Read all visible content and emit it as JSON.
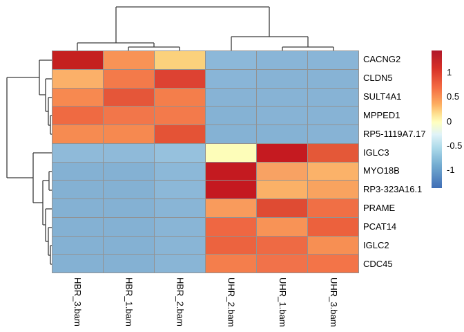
{
  "chart_data": {
    "type": "heatmap",
    "title": "",
    "columns": [
      "HBR_3.bam",
      "HBR_1.bam",
      "HBR_2.bam",
      "UHR_2.bam",
      "UHR_1.bam",
      "UHR_3.bam"
    ],
    "rows": [
      "CACNG2",
      "CLDN5",
      "SULT4A1",
      "MPPED1",
      "RP5-1119A7.17",
      "IGLC3",
      "MYO18B",
      "RP3-323A16.1",
      "PRAME",
      "PCAT14",
      "IGLC2",
      "CDC45"
    ],
    "values": [
      [
        1.4,
        0.7,
        0.4,
        -0.85,
        -0.85,
        -0.85
      ],
      [
        0.55,
        0.8,
        1.1,
        -0.85,
        -0.85,
        -0.85
      ],
      [
        0.65,
        1.0,
        0.75,
        -0.85,
        -0.85,
        -0.85
      ],
      [
        0.9,
        0.8,
        0.8,
        -0.9,
        -0.85,
        -0.85
      ],
      [
        0.65,
        0.65,
        1.05,
        -0.9,
        -0.9,
        -0.85
      ],
      [
        -0.8,
        -0.8,
        -0.75,
        0.0,
        1.4,
        1.05
      ],
      [
        -0.9,
        -0.9,
        -0.8,
        1.4,
        0.6,
        0.55
      ],
      [
        -0.9,
        -0.9,
        -0.8,
        1.4,
        0.55,
        0.6
      ],
      [
        -0.9,
        -0.9,
        -0.85,
        0.6,
        1.1,
        0.85
      ],
      [
        -0.9,
        -0.9,
        -0.85,
        0.85,
        0.65,
        0.95
      ],
      [
        -0.9,
        -0.9,
        -0.85,
        0.9,
        0.85,
        0.65
      ],
      [
        -0.9,
        -0.9,
        -0.85,
        0.75,
        0.85,
        0.8
      ]
    ],
    "cell_colors": [
      [
        "#c5201f",
        "#f89356",
        "#fbd17c",
        "#8cb8d9",
        "#89b5d7",
        "#89b5d7"
      ],
      [
        "#fbb069",
        "#f37a4a",
        "#dd4232",
        "#89b5d7",
        "#87b3d5",
        "#87b3d5"
      ],
      [
        "#f78950",
        "#e55639",
        "#f47e4b",
        "#87b3d5",
        "#87b3d5",
        "#87b3d5"
      ],
      [
        "#ef6a42",
        "#f2764a",
        "#f37a4b",
        "#85b2d4",
        "#87b3d5",
        "#87b3d5"
      ],
      [
        "#f68b51",
        "#f68950",
        "#e45336",
        "#85b2d4",
        "#85b2d4",
        "#87b3d5"
      ],
      [
        "#8fbad9",
        "#8fbad9",
        "#96c1dd",
        "#fdfdb9",
        "#c51a20",
        "#e45838"
      ],
      [
        "#84b1d3",
        "#84b1d3",
        "#8cb8d8",
        "#c41a20",
        "#f8a263",
        "#fbb269"
      ],
      [
        "#84b1d3",
        "#84b1d3",
        "#8cb8d8",
        "#c41920",
        "#fbb167",
        "#f9a35f"
      ],
      [
        "#84b1d3",
        "#84b1d3",
        "#89b5d6",
        "#f99b5c",
        "#df4b33",
        "#f06f45"
      ],
      [
        "#84b1d3",
        "#84b1d3",
        "#89b5d6",
        "#ef6742",
        "#f89356",
        "#ec613d"
      ],
      [
        "#84b1d3",
        "#84b1d3",
        "#89b5d6",
        "#ec633f",
        "#ee6a44",
        "#f78f53"
      ],
      [
        "#84b1d3",
        "#84b1d3",
        "#89b5d6",
        "#f47e4c",
        "#f1724a",
        "#f37448"
      ]
    ],
    "grid_color": "#929292",
    "dendrogram_color": "#3a3a3a",
    "legend": {
      "position": "right",
      "ticks": [
        {
          "label": "1",
          "value": 1
        },
        {
          "label": "0.5",
          "value": 0.5
        },
        {
          "label": "0",
          "value": 0
        },
        {
          "label": "-0.5",
          "value": -0.5
        },
        {
          "label": "-1",
          "value": -1
        }
      ],
      "value_range": [
        -1.37,
        1.45
      ],
      "gradient_stops": [
        {
          "pos": 0,
          "color": "#b0182a"
        },
        {
          "pos": 13,
          "color": "#d73027"
        },
        {
          "pos": 27,
          "color": "#f46d43"
        },
        {
          "pos": 39,
          "color": "#fdae61"
        },
        {
          "pos": 46,
          "color": "#fee090"
        },
        {
          "pos": 52,
          "color": "#ffffbf"
        },
        {
          "pos": 61,
          "color": "#e0f3f8"
        },
        {
          "pos": 71,
          "color": "#abd9e9"
        },
        {
          "pos": 83,
          "color": "#74add1"
        },
        {
          "pos": 100,
          "color": "#3f6db5"
        }
      ]
    },
    "dendrograms": {
      "top": {
        "segments": [
          [
            168,
            10,
            390,
            10
          ],
          [
            168,
            10,
            168,
            62
          ],
          [
            390,
            10,
            390,
            53
          ],
          [
            112,
            62,
            223,
            62
          ],
          [
            112,
            62,
            112,
            73
          ],
          [
            223,
            62,
            223,
            68
          ],
          [
            186,
            68,
            260,
            68
          ],
          [
            186,
            68,
            186,
            73
          ],
          [
            260,
            68,
            260,
            73
          ],
          [
            335,
            53,
            446,
            53
          ],
          [
            335,
            53,
            335,
            73
          ],
          [
            446,
            53,
            446,
            68
          ],
          [
            409,
            68,
            483,
            68
          ],
          [
            409,
            68,
            409,
            73
          ],
          [
            483,
            68,
            483,
            73
          ]
        ]
      },
      "left": {
        "segments": [
          [
            10,
            112,
            10,
            257
          ],
          [
            10,
            112,
            57,
            112
          ],
          [
            10,
            257,
            48,
            257
          ],
          [
            57,
            87,
            57,
            137
          ],
          [
            57,
            87,
            75,
            87
          ],
          [
            57,
            137,
            66,
            137
          ],
          [
            66,
            114,
            66,
            161
          ],
          [
            66,
            114,
            75,
            114
          ],
          [
            66,
            161,
            70,
            161
          ],
          [
            70,
            141,
            70,
            181
          ],
          [
            70,
            141,
            75,
            141
          ],
          [
            70,
            181,
            73,
            181
          ],
          [
            73,
            167,
            73,
            194
          ],
          [
            73,
            167,
            75,
            167
          ],
          [
            73,
            194,
            75,
            194
          ],
          [
            48,
            221,
            48,
            293
          ],
          [
            48,
            221,
            75,
            221
          ],
          [
            48,
            293,
            62,
            293
          ],
          [
            62,
            261,
            62,
            325
          ],
          [
            62,
            261,
            71,
            261
          ],
          [
            62,
            325,
            66,
            325
          ],
          [
            71,
            248,
            71,
            275
          ],
          [
            71,
            248,
            75,
            248
          ],
          [
            71,
            275,
            75,
            275
          ],
          [
            66,
            302,
            66,
            349
          ],
          [
            66,
            302,
            75,
            302
          ],
          [
            66,
            349,
            70,
            349
          ],
          [
            70,
            329,
            70,
            369
          ],
          [
            70,
            329,
            75,
            329
          ],
          [
            70,
            369,
            73,
            369
          ],
          [
            73,
            355,
            73,
            382
          ],
          [
            73,
            355,
            75,
            355
          ],
          [
            73,
            382,
            75,
            382
          ]
        ]
      }
    }
  }
}
